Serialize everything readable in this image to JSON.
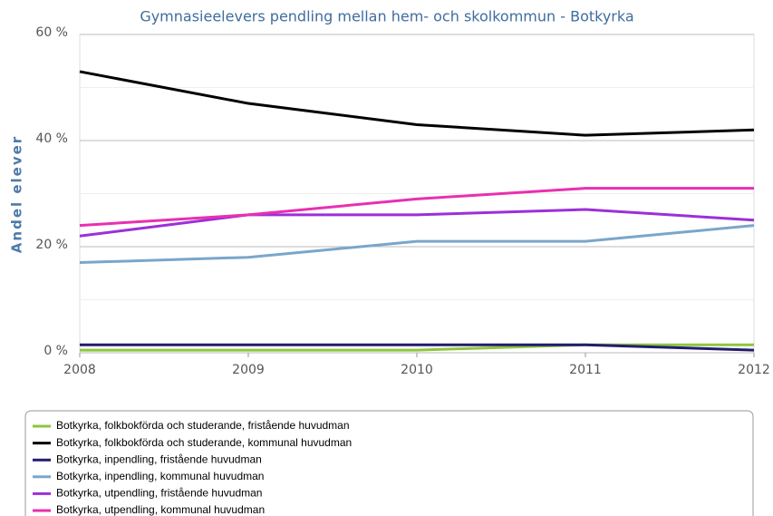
{
  "chart_data": {
    "type": "line",
    "title": "Gymnasieelevers pendling mellan hem- och skolkommun - Botkyrka",
    "y_label": "Andel elever",
    "x": [
      2008,
      2009,
      2010,
      2011,
      2012
    ],
    "xlim": [
      2008,
      2012
    ],
    "xticks": [
      2008,
      2009,
      2010,
      2011,
      2012
    ],
    "ylim": [
      0,
      60
    ],
    "yticks": [
      {
        "value": 0,
        "label": "0 %"
      },
      {
        "value": 20,
        "label": "20 %"
      },
      {
        "value": 40,
        "label": "40 %"
      },
      {
        "value": 60,
        "label": "60 %"
      }
    ],
    "minor_yticks": [
      10,
      30,
      50
    ],
    "grid": true,
    "legend": "bottom",
    "series": [
      {
        "name": "Botkyrka, folkbokförda och studerande, fristående huvudman",
        "color": "#8dc63f",
        "values": [
          0.5,
          0.5,
          0.5,
          1.5,
          1.5
        ]
      },
      {
        "name": "Botkyrka, folkbokförda och studerande, kommunal huvudman",
        "color": "#000000",
        "values": [
          53,
          47,
          43,
          41,
          42
        ]
      },
      {
        "name": "Botkyrka, inpendling, fristående huvudman",
        "color": "#231c6e",
        "values": [
          1.5,
          1.5,
          1.5,
          1.5,
          0.5
        ]
      },
      {
        "name": "Botkyrka, inpendling, kommunal huvudman",
        "color": "#7aa6cb",
        "values": [
          17,
          18,
          21,
          21,
          24
        ]
      },
      {
        "name": "Botkyrka, utpendling, fristående huvudman",
        "color": "#9b30d9",
        "values": [
          22,
          26,
          26,
          27,
          25
        ]
      },
      {
        "name": "Botkyrka, utpendling, kommunal huvudman",
        "color": "#e830b0",
        "values": [
          24,
          26,
          29,
          31,
          31
        ]
      }
    ]
  }
}
